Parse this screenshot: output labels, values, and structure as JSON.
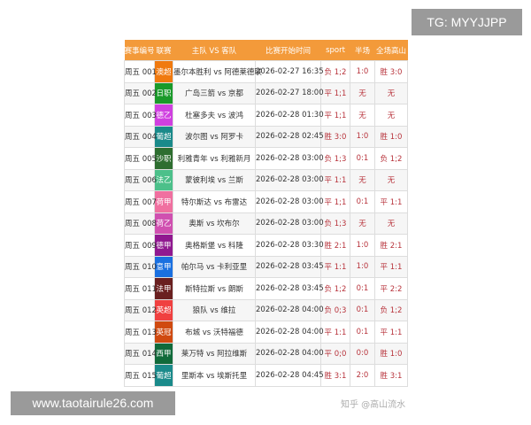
{
  "badges": {
    "tg": "TG: MYYJJPP",
    "site": "www.taotairule26.com"
  },
  "watermark": "知乎 @高山流水",
  "table": {
    "headers": [
      "赛事编号",
      "联赛",
      "主队 VS 客队",
      "比赛开始时间",
      "sport",
      "半场",
      "全场高山"
    ],
    "rows": [
      {
        "id": "周五 001",
        "league": "澳超",
        "color": "#f07a10",
        "teams": "墨尔本胜利 vs 阿德莱德联",
        "time": "2026-02-27 16:35",
        "sport": "负 1;2",
        "half": "1:0",
        "full": "胜 3:0"
      },
      {
        "id": "周五 002",
        "league": "日职",
        "color": "#1a9a2a",
        "teams": "广岛三箭 vs 京都",
        "time": "2026-02-27 18:00",
        "sport": "平 1;1",
        "half": "无",
        "full": "无"
      },
      {
        "id": "周五 003",
        "league": "德乙",
        "color": "#d040e0",
        "teams": "杜塞多夫 vs 波鸿",
        "time": "2026-02-28 01:30",
        "sport": "平 1;1",
        "half": "无",
        "full": "无"
      },
      {
        "id": "周五 004",
        "league": "葡超",
        "color": "#1a8a8a",
        "teams": "波尔图 vs 阿罗卡",
        "time": "2026-02-28 02:45",
        "sport": "胜 3:0",
        "half": "1:0",
        "full": "胜 1:0"
      },
      {
        "id": "周五 005",
        "league": "沙职",
        "color": "#2e6e30",
        "teams": "利雅青年 vs 利雅新月",
        "time": "2026-02-28 03:00",
        "sport": "负 1;3",
        "half": "0:1",
        "full": "负 1;2"
      },
      {
        "id": "周五 006",
        "league": "法乙",
        "color": "#4cc08a",
        "teams": "蒙彼利埃 vs 兰斯",
        "time": "2026-02-28 03:00",
        "sport": "平 1:1",
        "half": "无",
        "full": "无"
      },
      {
        "id": "周五 007",
        "league": "荷甲",
        "color": "#f070a0",
        "teams": "特尔斯达 vs 布雷达",
        "time": "2026-02-28 03:00",
        "sport": "平 1;1",
        "half": "0:1",
        "full": "平 1:1"
      },
      {
        "id": "周五 008",
        "league": "荷乙",
        "color": "#d050b0",
        "teams": "奥斯 vs 坎布尔",
        "time": "2026-02-28 03:00",
        "sport": "负 1;3",
        "half": "无",
        "full": "无"
      },
      {
        "id": "周五 009",
        "league": "德甲",
        "color": "#901890",
        "teams": "奥格斯堡 vs 科隆",
        "time": "2026-02-28 03:30",
        "sport": "胜 2:1",
        "half": "1:0",
        "full": "胜 2:1"
      },
      {
        "id": "周五 010",
        "league": "意甲",
        "color": "#1a70e0",
        "teams": "帕尔马 vs 卡利亚里",
        "time": "2026-02-28 03:45",
        "sport": "平 1:1",
        "half": "1:0",
        "full": "平 1:1"
      },
      {
        "id": "周五 011",
        "league": "法甲",
        "color": "#6a2020",
        "teams": "斯特拉斯 vs 朗斯",
        "time": "2026-02-28 03:45",
        "sport": "负 1;2",
        "half": "0:1",
        "full": "平 2:2"
      },
      {
        "id": "周五 012",
        "league": "英超",
        "color": "#f04040",
        "teams": "狼队 vs 维拉",
        "time": "2026-02-28 04:00",
        "sport": "负 0;3",
        "half": "0:1",
        "full": "负 1;2"
      },
      {
        "id": "周五 013",
        "league": "英冠",
        "color": "#d04a10",
        "teams": "布城 vs 沃特福德",
        "time": "2026-02-28 04:00",
        "sport": "平 1:1",
        "half": "0:1",
        "full": "平 1:1"
      },
      {
        "id": "周五 014",
        "league": "西甲",
        "color": "#106a3a",
        "teams": "莱万特 vs 阿拉维斯",
        "time": "2026-02-28 04:00",
        "sport": "平 0;0",
        "half": "0:0",
        "full": "胜 1:0"
      },
      {
        "id": "周五 015",
        "league": "葡超",
        "color": "#1a8a8a",
        "teams": "里斯本 vs 埃斯托里",
        "time": "2026-02-28 04:45",
        "sport": "胜 3:1",
        "half": "2:0",
        "full": "胜 3:1"
      }
    ]
  }
}
